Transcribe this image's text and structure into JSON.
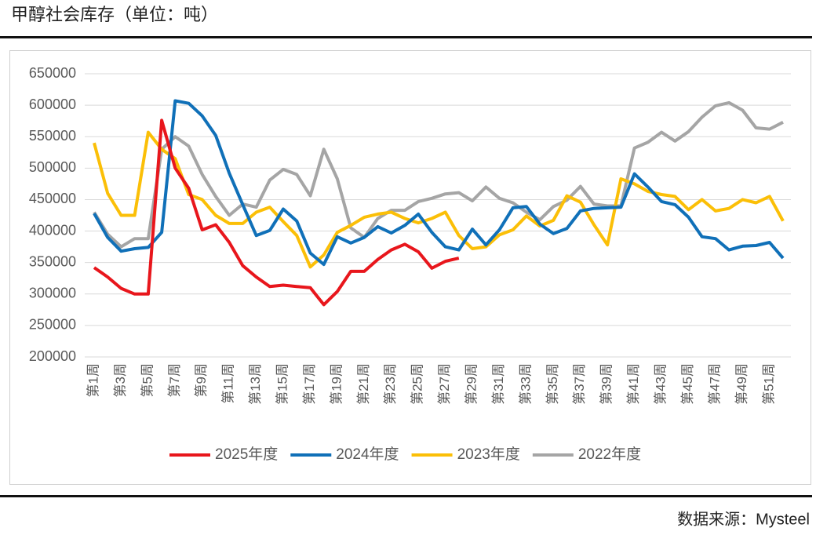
{
  "chart_data": {
    "type": "line",
    "title": "甲醇社会库存（单位：吨）",
    "source": "数据来源：Mysteel",
    "categories": [
      "第1周",
      null,
      "第3周",
      null,
      "第5周",
      null,
      "第7周",
      null,
      "第9周",
      null,
      "第11周",
      null,
      "第13周",
      null,
      "第15周",
      null,
      "第17周",
      null,
      "第19周",
      null,
      "第21周",
      null,
      "第23周",
      null,
      "第25周",
      null,
      "第27周",
      null,
      "第29周",
      null,
      "第31周",
      null,
      "第33周",
      null,
      "第35周",
      null,
      "第37周",
      null,
      "第39周",
      null,
      "第41周",
      null,
      "第43周",
      null,
      "第45周",
      null,
      "第47周",
      null,
      "第49周",
      null,
      "第51周",
      null
    ],
    "series": [
      {
        "name": "2025年度",
        "color": "#e8161c",
        "values": [
          342000,
          327000,
          309000,
          300000,
          300000,
          576000,
          500000,
          468000,
          402000,
          410000,
          382000,
          345000,
          327000,
          312000,
          314000,
          312000,
          310000,
          283000,
          304000,
          336000,
          336000,
          355000,
          370000,
          379000,
          367000,
          341000,
          352000,
          357000,
          null,
          null,
          null,
          null,
          null,
          null,
          null,
          null,
          null,
          null,
          null,
          null,
          null,
          null,
          null,
          null,
          null,
          null,
          null,
          null,
          null,
          null,
          null,
          null
        ]
      },
      {
        "name": "2024年度",
        "color": "#1070b8",
        "values": [
          428000,
          390000,
          368000,
          372000,
          374000,
          398000,
          607000,
          603000,
          583000,
          552000,
          492000,
          442000,
          393000,
          401000,
          435000,
          416000,
          365000,
          347000,
          391000,
          381000,
          390000,
          407000,
          397000,
          409000,
          427000,
          398000,
          375000,
          370000,
          403000,
          378000,
          402000,
          437000,
          439000,
          411000,
          396000,
          404000,
          432000,
          436000,
          437000,
          438000,
          491000,
          470000,
          447000,
          442000,
          422000,
          391000,
          388000,
          370000,
          376000,
          377000,
          382000,
          357000
        ]
      },
      {
        "name": "2023年度",
        "color": "#fbbf07",
        "values": [
          540000,
          460000,
          425000,
          425000,
          557000,
          530000,
          515000,
          458000,
          450000,
          425000,
          412000,
          412000,
          430000,
          438000,
          415000,
          393000,
          343000,
          362000,
          398000,
          409000,
          422000,
          427000,
          430000,
          420000,
          413000,
          420000,
          430000,
          393000,
          372000,
          375000,
          394000,
          402000,
          424000,
          408000,
          417000,
          456000,
          446000,
          410000,
          378000,
          483000,
          475000,
          463000,
          458000,
          455000,
          434000,
          450000,
          432000,
          436000,
          450000,
          445000,
          455000,
          416000
        ]
      },
      {
        "name": "2022年度",
        "color": "#a5a5a5",
        "values": [
          430000,
          395000,
          375000,
          388000,
          388000,
          530000,
          550000,
          535000,
          490000,
          455000,
          425000,
          443000,
          438000,
          481000,
          498000,
          490000,
          456000,
          530000,
          483000,
          405000,
          390000,
          420000,
          433000,
          433000,
          447000,
          452000,
          459000,
          461000,
          448000,
          470000,
          452000,
          445000,
          430000,
          418000,
          439000,
          449000,
          471000,
          443000,
          440000,
          440000,
          532000,
          541000,
          557000,
          543000,
          558000,
          581000,
          599000,
          604000,
          592000,
          564000,
          562000,
          573000
        ]
      }
    ],
    "ylim": [
      200000,
      650000
    ],
    "yticks": [
      200000,
      250000,
      300000,
      350000,
      400000,
      450000,
      500000,
      550000,
      600000,
      650000
    ],
    "grid": true,
    "legend": "bottom"
  }
}
